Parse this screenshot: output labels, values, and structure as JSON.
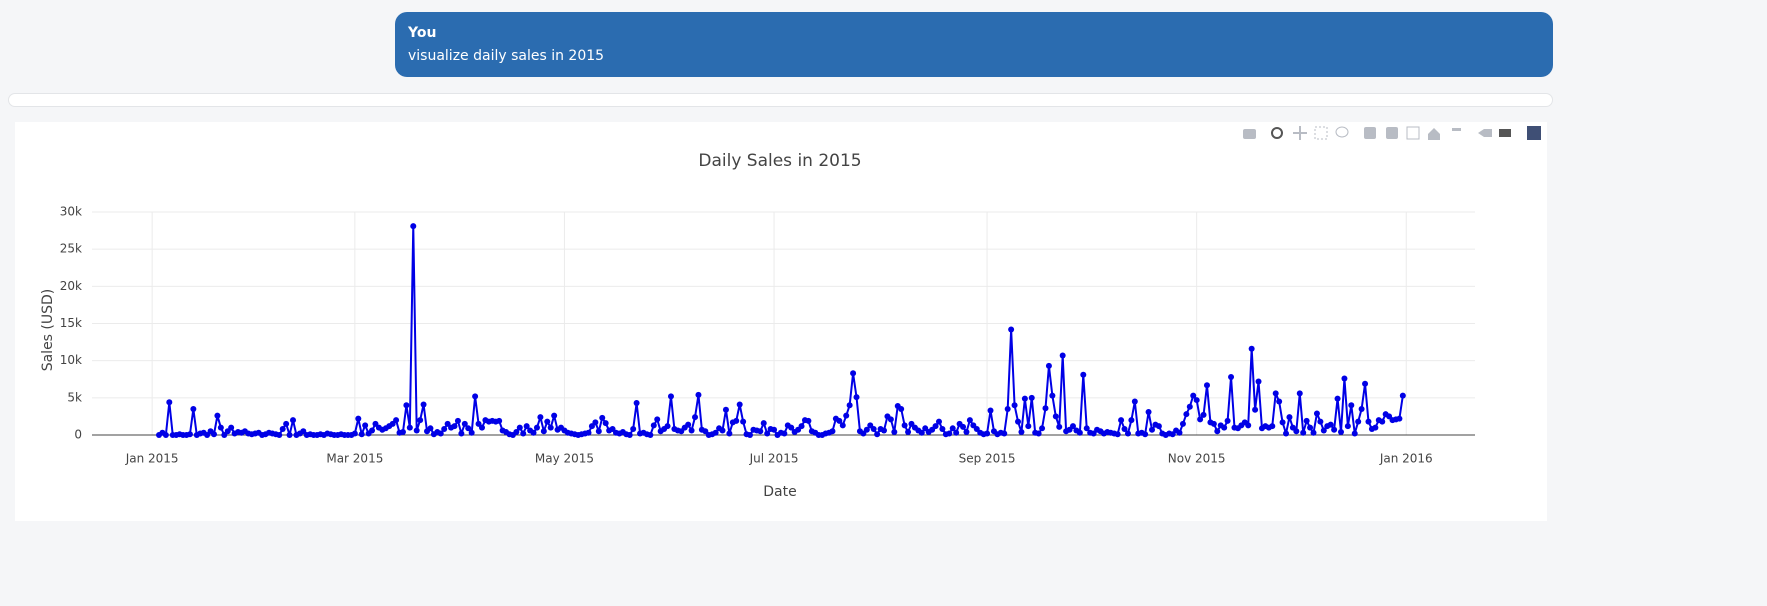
{
  "message": {
    "author": "You",
    "text": "visualize daily sales in 2015"
  },
  "chart_data": {
    "type": "line",
    "title": "Daily Sales in 2015",
    "x_label": "Date",
    "y_label": "Sales (USD)",
    "color": "#0000e6",
    "grid": true,
    "markers": true,
    "xlim": [
      -17.5,
      385
    ],
    "ylim": [
      0,
      30000
    ],
    "xticks": [
      {
        "value": 0,
        "label": "Jan 2015"
      },
      {
        "value": 59,
        "label": "Mar 2015"
      },
      {
        "value": 120,
        "label": "May 2015"
      },
      {
        "value": 181,
        "label": "Jul 2015"
      },
      {
        "value": 243,
        "label": "Sep 2015"
      },
      {
        "value": 304,
        "label": "Nov 2015"
      },
      {
        "value": 365,
        "label": "Jan 2016"
      }
    ],
    "yticks": [
      0,
      {
        "value": 5000,
        "label": "5k"
      },
      {
        "value": 10000,
        "label": "10k"
      },
      {
        "value": 15000,
        "label": "15k"
      },
      {
        "value": 20000,
        "label": "20k"
      },
      {
        "value": 25000,
        "label": "25k"
      },
      {
        "value": 30000,
        "label": "30k"
      }
    ],
    "x": [
      2,
      3,
      4,
      5,
      6,
      7,
      8,
      9,
      10,
      11,
      12,
      13,
      14,
      15,
      16,
      17,
      18,
      19,
      20,
      21,
      22,
      23,
      24,
      25,
      26,
      27,
      28,
      29,
      30,
      31,
      32,
      33,
      34,
      35,
      36,
      37,
      38,
      39,
      40,
      41,
      42,
      43,
      44,
      45,
      46,
      47,
      48,
      49,
      50,
      51,
      52,
      53,
      54,
      55,
      56,
      57,
      58,
      59,
      60,
      61,
      62,
      63,
      64,
      65,
      66,
      67,
      68,
      69,
      70,
      71,
      72,
      73,
      74,
      75,
      76,
      77,
      78,
      79,
      80,
      81,
      82,
      83,
      84,
      85,
      86,
      87,
      88,
      89,
      90,
      91,
      92,
      93,
      94,
      95,
      96,
      97,
      98,
      99,
      100,
      101,
      102,
      103,
      104,
      105,
      106,
      107,
      108,
      109,
      110,
      111,
      112,
      113,
      114,
      115,
      116,
      117,
      118,
      119,
      120,
      121,
      122,
      123,
      124,
      125,
      126,
      127,
      128,
      129,
      130,
      131,
      132,
      133,
      134,
      135,
      136,
      137,
      138,
      139,
      140,
      141,
      142,
      143,
      144,
      145,
      146,
      147,
      148,
      149,
      150,
      151,
      152,
      153,
      154,
      155,
      156,
      157,
      158,
      159,
      160,
      161,
      162,
      163,
      164,
      165,
      166,
      167,
      168,
      169,
      170,
      171,
      172,
      173,
      174,
      175,
      176,
      177,
      178,
      179,
      180,
      181,
      182,
      183,
      184,
      185,
      186,
      187,
      188,
      189,
      190,
      191,
      192,
      193,
      194,
      195,
      196,
      197,
      198,
      199,
      200,
      201,
      202,
      203,
      204,
      205,
      206,
      207,
      208,
      209,
      210,
      211,
      212,
      213,
      214,
      215,
      216,
      217,
      218,
      219,
      220,
      221,
      222,
      223,
      224,
      225,
      226,
      227,
      228,
      229,
      230,
      231,
      232,
      233,
      234,
      235,
      236,
      237,
      238,
      239,
      240,
      241,
      242,
      243,
      244,
      245,
      246,
      247,
      248,
      249,
      250,
      251,
      252,
      253,
      254,
      255,
      256,
      257,
      258,
      259,
      260,
      261,
      262,
      263,
      264,
      265,
      266,
      267,
      268,
      269,
      270,
      271,
      272,
      273,
      274,
      275,
      276,
      277,
      278,
      279,
      280,
      281,
      282,
      283,
      284,
      285,
      286,
      287,
      288,
      289,
      290,
      291,
      292,
      293,
      294,
      295,
      296,
      297,
      298,
      299,
      300,
      301,
      302,
      303,
      304,
      305,
      306,
      307,
      308,
      309,
      310,
      311,
      312,
      313,
      314,
      315,
      316,
      317,
      318,
      319,
      320,
      321,
      322,
      323,
      324,
      325,
      326,
      327,
      328,
      329,
      330,
      331,
      332,
      333,
      334,
      335,
      336,
      337,
      338,
      339,
      340,
      341,
      342,
      343,
      344,
      345,
      346,
      347,
      348,
      349,
      350,
      351,
      352,
      353,
      354,
      355,
      356,
      357,
      358,
      359,
      360,
      361,
      362,
      363,
      364
    ],
    "values": [
      0,
      300,
      0,
      4400,
      0,
      0,
      100,
      0,
      0,
      100,
      3500,
      0,
      200,
      300,
      0,
      500,
      100,
      2600,
      1000,
      0,
      500,
      1000,
      200,
      400,
      300,
      500,
      200,
      100,
      200,
      300,
      0,
      100,
      300,
      200,
      100,
      0,
      800,
      1500,
      0,
      2000,
      0,
      200,
      500,
      0,
      100,
      0,
      0,
      100,
      0,
      200,
      100,
      0,
      0,
      100,
      0,
      0,
      0,
      200,
      2200,
      100,
      1300,
      200,
      600,
      1500,
      1000,
      700,
      900,
      1200,
      1500,
      2000,
      300,
      400,
      4000,
      1000,
      28100,
      600,
      2000,
      4100,
      500,
      900,
      100,
      400,
      200,
      800,
      1500,
      1000,
      1200,
      1900,
      200,
      1500,
      900,
      300,
      5200,
      1500,
      1000,
      2000,
      1800,
      1900,
      1800,
      1900,
      600,
      400,
      100,
      0,
      400,
      1000,
      200,
      1200,
      600,
      300,
      1000,
      2400,
      500,
      1800,
      1000,
      2600,
      700,
      1000,
      600,
      300,
      200,
      100,
      0,
      100,
      200,
      300,
      1200,
      1700,
      500,
      2300,
      1600,
      600,
      800,
      300,
      200,
      400,
      100,
      0,
      800,
      4300,
      200,
      300,
      100,
      0,
      1300,
      2100,
      500,
      800,
      1200,
      5200,
      800,
      600,
      500,
      1000,
      1400,
      600,
      2400,
      5400,
      700,
      500,
      0,
      100,
      300,
      900,
      600,
      3400,
      200,
      1700,
      1900,
      4100,
      1800,
      100,
      0,
      700,
      600,
      500,
      1600,
      200,
      800,
      700,
      0,
      300,
      200,
      1300,
      1000,
      400,
      700,
      1200,
      2000,
      1900,
      500,
      300,
      0,
      0,
      200,
      300,
      500,
      2200,
      1900,
      1300,
      2600,
      4000,
      8300,
      5100,
      500,
      200,
      700,
      1300,
      800,
      100,
      800,
      600,
      2500,
      2100,
      400,
      3900,
      3500,
      1300,
      400,
      1500,
      1000,
      600,
      300,
      900,
      400,
      700,
      1200,
      1800,
      800,
      100,
      200,
      900,
      300,
      1500,
      1100,
      400,
      2000,
      1300,
      800,
      300,
      100,
      200,
      3300,
      500,
      100,
      300,
      200,
      3500,
      14200,
      4000,
      1800,
      400,
      4900,
      1200,
      5000,
      300,
      200,
      900,
      3600,
      9300,
      5300,
      2500,
      1100,
      10700,
      500,
      700,
      1200,
      600,
      300,
      8100,
      900,
      300,
      200,
      700,
      500,
      200,
      400,
      300,
      200,
      100,
      2000,
      800,
      200,
      2000,
      4500,
      200,
      300,
      100,
      3100,
      700,
      1400,
      1200,
      200,
      0,
      200,
      100,
      600,
      300,
      1500,
      2800,
      3800,
      5300,
      4700,
      2100,
      2700,
      6700,
      1700,
      1500,
      500,
      1300,
      1000,
      1900,
      7800,
      1000,
      900,
      1300,
      1700,
      1300,
      11600,
      3400,
      7200,
      900,
      1200,
      1000,
      1200,
      5600,
      4500,
      1700,
      200,
      2400,
      1000,
      500,
      5600,
      300,
      1900,
      1000,
      300,
      2900,
      1800,
      600,
      1200,
      1400,
      700,
      4900,
      400,
      7600,
      1200,
      4000,
      200,
      1800,
      3500,
      6900,
      1800,
      800,
      1000,
      2000,
      1800,
      2800,
      2500,
      2000,
      2100,
      2200,
      5300
    ]
  }
}
